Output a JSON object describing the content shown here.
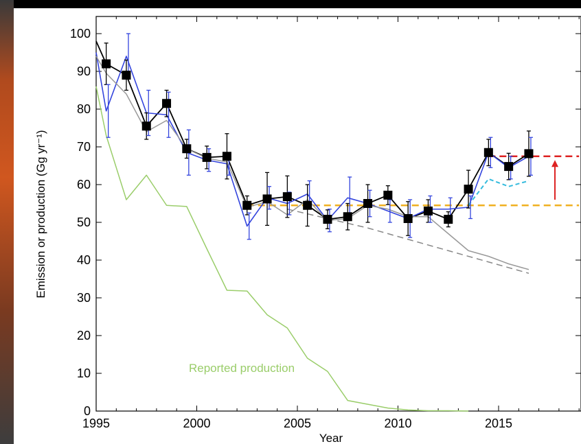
{
  "chart_data": {
    "type": "line",
    "xlabel": "Year",
    "ylabel": "Emission or production (Gg yr⁻¹)",
    "xlim": [
      1995,
      2019
    ],
    "ylim": [
      0,
      100
    ],
    "xticks": [
      1995,
      2000,
      2005,
      2010,
      2015
    ],
    "yticks": [
      0,
      10,
      20,
      30,
      40,
      50,
      60,
      70,
      80,
      90,
      100
    ],
    "annotations": [
      {
        "text": "Reported production",
        "color": "#9acd6a"
      }
    ],
    "series": [
      {
        "style": "black-markers",
        "color": "#000000",
        "x": [
          1995,
          1995.5,
          1996.5,
          1997.5,
          1998.5,
          1999.5,
          2000.5,
          2001.5,
          2002.5,
          2003.5,
          2004.5,
          2005.5,
          2006.5,
          2007.5,
          2008.5,
          2009.5,
          2010.5,
          2011.5,
          2012.5,
          2013.5,
          2014.5,
          2015.5,
          2016.5
        ],
        "y": [
          98,
          92,
          89,
          75.5,
          81.5,
          69.5,
          67.2,
          67.5,
          54.5,
          56.2,
          56.8,
          54.5,
          50.8,
          51.5,
          55,
          57.2,
          51,
          53,
          50.8,
          58.8,
          68.5,
          64.8,
          68.2
        ],
        "markers": [
          false,
          true,
          true,
          true,
          true,
          true,
          true,
          true,
          true,
          true,
          true,
          true,
          true,
          true,
          true,
          true,
          true,
          true,
          true,
          true,
          true,
          true,
          true
        ],
        "err": [
          0,
          5.5,
          4,
          3.5,
          3.5,
          2.5,
          3,
          6,
          2.5,
          7,
          5.5,
          5.5,
          2.5,
          3.5,
          5,
          2.5,
          4.5,
          3,
          2,
          5,
          3.5,
          3.5,
          6
        ]
      },
      {
        "style": "blue-errorbars",
        "color": "#3344dd",
        "x": [
          1995,
          1995.5,
          1996.5,
          1997.5,
          1998.5,
          1999.5,
          2000.5,
          2001.5,
          2002.5,
          2003.5,
          2004.5,
          2005.5,
          2006.5,
          2007.5,
          2008.5,
          2009.5,
          2010.5,
          2011.5,
          2012.5,
          2013.5,
          2014.5,
          2015.5,
          2016.5
        ],
        "y": [
          95,
          79.5,
          94,
          79,
          78.5,
          68.5,
          66.5,
          65.5,
          49,
          56.5,
          55,
          57.5,
          50.5,
          56.5,
          55,
          53,
          51,
          53.5,
          53.5,
          54,
          68.5,
          64.5,
          67.5
        ],
        "err": [
          0,
          7,
          6,
          6,
          6,
          6,
          3,
          3,
          3.5,
          3,
          3,
          3.5,
          3,
          5.5,
          3.5,
          3,
          5,
          3.5,
          3,
          3,
          4,
          3,
          5
        ]
      },
      {
        "style": "gray-solid",
        "color": "#999999",
        "x": [
          1995,
          1995.5,
          1996.5,
          1997.5,
          1998.5,
          1999.5,
          2000.5,
          2001.5,
          2002.5,
          2003.5,
          2004.5,
          2005.5,
          2006.5,
          2007.5,
          2008.5,
          2009.5,
          2010.5,
          2011.5,
          2012.5,
          2013.5,
          2014.5,
          2015.5,
          2016.5
        ],
        "y": [
          94,
          89.5,
          84,
          74,
          77,
          69.5,
          67,
          66,
          54,
          55.5,
          52,
          56,
          50.5,
          51,
          54.5,
          53.5,
          51.5,
          51.5,
          47,
          42.5,
          41,
          39,
          37.5
        ]
      },
      {
        "style": "gray-dashed",
        "color": "#888888",
        "x": [
          2004.5,
          2006.5,
          2008.5,
          2010.5,
          2012.5,
          2014.5,
          2016.5
        ],
        "y": [
          53.5,
          51,
          48.5,
          45.5,
          42.5,
          39.5,
          36.5
        ]
      },
      {
        "style": "green-solid",
        "color": "#9acd6a",
        "x": [
          1995,
          1995.5,
          1996.5,
          1997.5,
          1998.5,
          1999.5,
          2000.5,
          2001.5,
          2002.5,
          2003.5,
          2004.5,
          2005.5,
          2006.5,
          2007.5,
          2008.5,
          2009.5,
          2010.5,
          2011.5,
          2012.5,
          2013.5
        ],
        "y": [
          86,
          73,
          56,
          62.5,
          54.5,
          54.2,
          43,
          32,
          31.8,
          25.5,
          22,
          14,
          10.5,
          2.8,
          1.8,
          0.8,
          0.3,
          0.1,
          0.1,
          0
        ]
      },
      {
        "style": "cyan-dashed",
        "color": "#33bbdd",
        "x": [
          2013.5,
          2014.5,
          2015.5,
          2016.5
        ],
        "y": [
          54.5,
          61.5,
          59.5,
          61
        ]
      },
      {
        "style": "orange-dashed-ref",
        "color": "#f0b020",
        "x": [
          2002.5,
          2019
        ],
        "y": [
          54.5,
          54.5
        ]
      },
      {
        "style": "red-dashed-ref",
        "color": "#dd2222",
        "x": [
          2014.5,
          2019
        ],
        "y": [
          67.5,
          67.5
        ]
      }
    ],
    "arrow": {
      "x": 2017.8,
      "from": 56,
      "to": 66.5,
      "color": "#dd2222"
    }
  }
}
